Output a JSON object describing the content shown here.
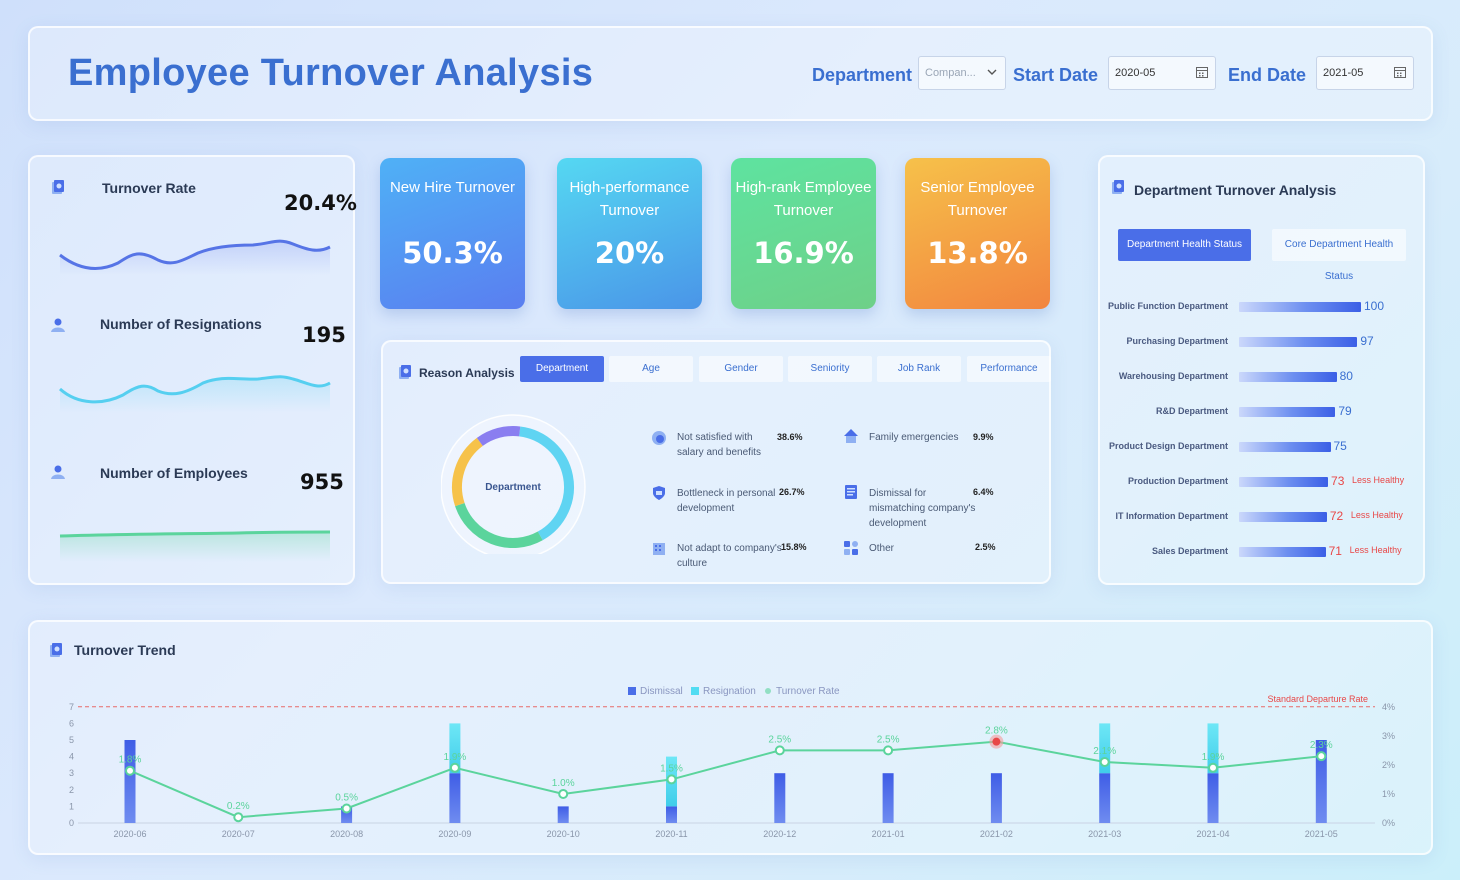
{
  "header": {
    "title": "Employee Turnover Analysis",
    "department_label": "Department",
    "department_placeholder": "Compan...",
    "start_label": "Start Date",
    "start_value": "2020-05",
    "end_label": "End Date",
    "end_value": "2021-05"
  },
  "kpis": {
    "turnover_rate": {
      "label": "Turnover Rate",
      "value": "20.4%"
    },
    "resignations": {
      "label": "Number of Resignations",
      "value": "195"
    },
    "employees": {
      "label": "Number of Employees",
      "value": "955"
    }
  },
  "cards": {
    "new_hire": {
      "title": "New Hire Turnover",
      "value": "50.3%"
    },
    "high_perf": {
      "title": "High-performance Turnover",
      "value": "20%"
    },
    "high_rank": {
      "title": "High-rank Employee Turnover",
      "value": "16.9%"
    },
    "senior": {
      "title": "Senior Employee Turnover",
      "value": "13.8%"
    }
  },
  "reason": {
    "title": "Reason Analysis",
    "tabs": [
      "Department",
      "Age",
      "Gender",
      "Seniority",
      "Job Rank",
      "Performance"
    ],
    "active_tab": "Department",
    "donut_label": "Department",
    "items": [
      {
        "label": "Not satisfied with salary and benefits",
        "pct": "38.6%"
      },
      {
        "label": "Family emergencies",
        "pct": "9.9%"
      },
      {
        "label": "Bottleneck in personal development",
        "pct": "26.7%"
      },
      {
        "label": "Dismissal for mismatching company's development",
        "pct": "6.4%"
      },
      {
        "label": "Not adapt to company's culture",
        "pct": "15.8%"
      },
      {
        "label": "Other",
        "pct": "2.5%"
      }
    ],
    "donut_colors": [
      "#5fd4f2",
      "#5bd49c",
      "#f6c24a",
      "#8a7ef0"
    ]
  },
  "department": {
    "title": "Department Turnover Analysis",
    "tab_active": "Department Health Status",
    "tab_inactive": "Core Department Health Status",
    "flag_text": "Less Healthy",
    "rows": [
      {
        "name": "Public Function Department",
        "value": 100,
        "warn": false
      },
      {
        "name": "Purchasing Department",
        "value": 97,
        "warn": false
      },
      {
        "name": "Warehousing Department",
        "value": 80,
        "warn": false
      },
      {
        "name": "R&D Department",
        "value": 79,
        "warn": false
      },
      {
        "name": "Product Design Department",
        "value": 75,
        "warn": false
      },
      {
        "name": "Production Department",
        "value": 73,
        "warn": true
      },
      {
        "name": "IT Information Department",
        "value": 72,
        "warn": true
      },
      {
        "name": "Sales Department",
        "value": 71,
        "warn": true
      }
    ]
  },
  "chart_data": {
    "type": "bar",
    "title": "Turnover Trend",
    "legend": [
      "Dismissal",
      "Resignation",
      "Turnover Rate"
    ],
    "standard_label": "Standard Departure Rate",
    "categories": [
      "2020-06",
      "2020-07",
      "2020-08",
      "2020-09",
      "2020-10",
      "2020-11",
      "2020-12",
      "2021-01",
      "2021-02",
      "2021-03",
      "2021-04",
      "2021-05"
    ],
    "series": [
      {
        "name": "Dismissal",
        "values": [
          5,
          0,
          1,
          3,
          1,
          1,
          3,
          3,
          3,
          3,
          3,
          5
        ],
        "color": "#4a6ee8"
      },
      {
        "name": "Resignation",
        "values": [
          0,
          0,
          0,
          3,
          0,
          3,
          0,
          0,
          0,
          3,
          3,
          0
        ],
        "color": "#52dcf2"
      },
      {
        "name": "Turnover Rate",
        "values": [
          1.8,
          0.2,
          0.5,
          1.9,
          1.0,
          1.5,
          2.5,
          2.5,
          2.8,
          2.1,
          1.9,
          2.3
        ],
        "labels": [
          "1.8%",
          "0.2%",
          "0.5%",
          "1.9%",
          "1.0%",
          "1.5%",
          "2.5%",
          "2.5%",
          "2.8%",
          "2.1%",
          "1.9%",
          "2.3%"
        ],
        "color": "#5bd49c"
      }
    ],
    "standard_rate": 4,
    "y_left": {
      "min": 0,
      "max": 7,
      "ticks": [
        0,
        1,
        2,
        3,
        4,
        5,
        6,
        7
      ]
    },
    "y_right": {
      "min": 0,
      "max": 4,
      "ticks": [
        "0%",
        "1%",
        "2%",
        "3%",
        "4%"
      ]
    },
    "highlight_index": 8
  }
}
